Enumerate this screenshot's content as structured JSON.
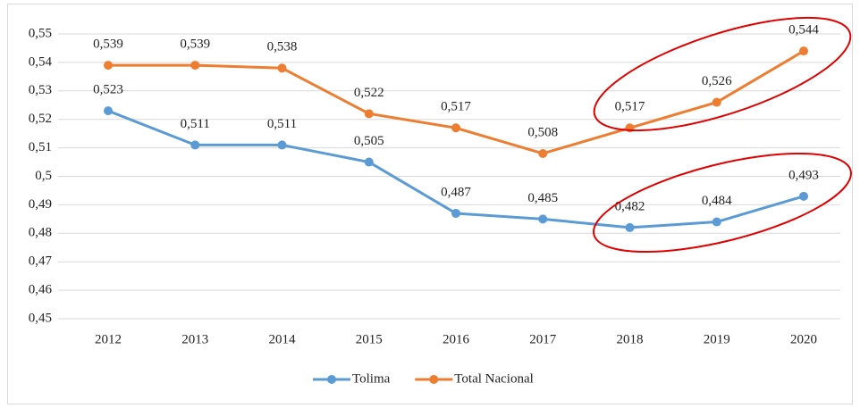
{
  "chart_data": {
    "type": "line",
    "categories": [
      "2012",
      "2013",
      "2014",
      "2015",
      "2016",
      "2017",
      "2018",
      "2019",
      "2020"
    ],
    "series": [
      {
        "name": "Tolima",
        "color": "#5b9bd5",
        "values": [
          0.523,
          0.511,
          0.511,
          0.505,
          0.487,
          0.485,
          0.482,
          0.484,
          0.493
        ],
        "value_labels": [
          "0,523",
          "0,511",
          "0,511",
          "0,505",
          "0,487",
          "0,485",
          "0,482",
          "0,484",
          "0,493"
        ]
      },
      {
        "name": "Total Nacional",
        "color": "#ed7d31",
        "values": [
          0.539,
          0.539,
          0.538,
          0.522,
          0.517,
          0.508,
          0.517,
          0.526,
          0.544
        ],
        "value_labels": [
          "0,539",
          "0,539",
          "0,538",
          "0,522",
          "0,517",
          "0,508",
          "0,517",
          "0,526",
          "0,544"
        ]
      }
    ],
    "ylim": [
      0.45,
      0.55
    ],
    "yticks": [
      {
        "value": 0.45,
        "label": "0,45"
      },
      {
        "value": 0.46,
        "label": "0,46"
      },
      {
        "value": 0.47,
        "label": "0,47"
      },
      {
        "value": 0.48,
        "label": "0,48"
      },
      {
        "value": 0.49,
        "label": "0,49"
      },
      {
        "value": 0.5,
        "label": "0,5"
      },
      {
        "value": 0.51,
        "label": "0,51"
      },
      {
        "value": 0.52,
        "label": "0,52"
      },
      {
        "value": 0.53,
        "label": "0,53"
      },
      {
        "value": 0.54,
        "label": "0,54"
      },
      {
        "value": 0.55,
        "label": "0,55"
      }
    ],
    "grid": true,
    "legend": "bottom"
  }
}
